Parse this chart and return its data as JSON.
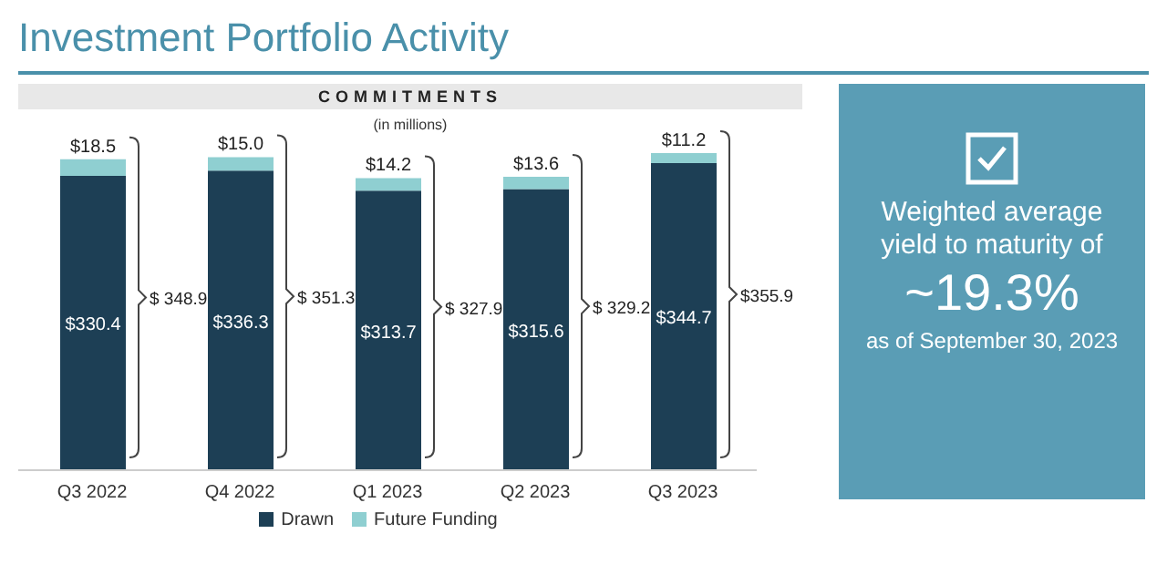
{
  "chart_data": [
    {
      "type": "bar",
      "title": "Investment Portfolio Activity",
      "subtitle": "COMMITMENTS",
      "ylabel": "(in millions)",
      "categories": [
        "Q3 2022",
        "Q4 2022",
        "Q1 2023",
        "Q2 2023",
        "Q3 2023"
      ],
      "stacked": true,
      "legend": "bottom",
      "series": [
        {
          "name": "Drawn",
          "color": "#1d3f55",
          "values": [
            330.4,
            336.3,
            313.7,
            315.6,
            344.7
          ],
          "value_labels": [
            "$330.4",
            "$336.3",
            "$313.7",
            "$315.6",
            "$344.7"
          ]
        },
        {
          "name": "Future Funding",
          "color": "#8fcfd1",
          "values": [
            18.5,
            15.0,
            14.2,
            13.6,
            11.2
          ],
          "value_labels": [
            "$18.5",
            "$15.0",
            "$14.2",
            "$13.6",
            "$11.2"
          ]
        }
      ],
      "totals": [
        "$ 348.9",
        "$ 351.3",
        "$ 327.9",
        "$ 329.2",
        "$355.9"
      ]
    },
    {
      "type": "other",
      "color": "#5a9db5",
      "annotations": [
        "Weighted average yield to maturity of",
        "~19.3%",
        "as of September 30, 2023"
      ]
    }
  ]
}
